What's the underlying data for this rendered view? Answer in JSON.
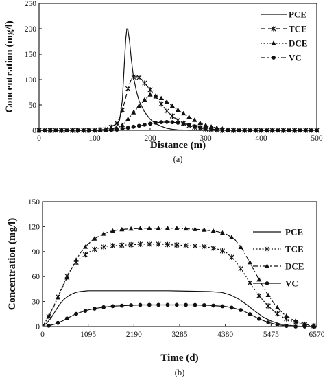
{
  "chart_data": [
    {
      "type": "line",
      "panel": "(a)",
      "xlabel": "Distance (m)",
      "ylabel": "Concentration (mg/l)",
      "xlim": [
        0,
        500
      ],
      "ylim": [
        0,
        250
      ],
      "xticks": [
        0,
        100,
        200,
        300,
        400,
        500
      ],
      "yticks": [
        0,
        50,
        100,
        150,
        200,
        250
      ],
      "grid": false,
      "legend_position": "top-right",
      "series": [
        {
          "name": "PCE",
          "style": "solid",
          "marker": "none",
          "x": [
            0,
            110,
            130,
            140,
            145,
            150,
            153,
            156,
            158,
            160,
            163,
            166,
            170,
            175,
            180,
            190,
            200,
            210,
            220,
            230,
            240,
            250,
            260,
            270,
            500
          ],
          "y": [
            0,
            0,
            1,
            8,
            20,
            60,
            120,
            180,
            200,
            198,
            175,
            140,
            105,
            78,
            58,
            36,
            22,
            13,
            8,
            4,
            2,
            1,
            0.5,
            0,
            0
          ]
        },
        {
          "name": "TCE",
          "style": "dashed",
          "marker": "x",
          "x": [
            0,
            100,
            120,
            130,
            140,
            145,
            150,
            155,
            160,
            165,
            170,
            175,
            180,
            185,
            190,
            200,
            210,
            220,
            230,
            240,
            250,
            260,
            270,
            280,
            290,
            300,
            310,
            320,
            330,
            340,
            350,
            500
          ],
          "y": [
            0,
            0,
            2,
            6,
            14,
            24,
            40,
            60,
            82,
            98,
            105,
            106,
            104,
            100,
            93,
            80,
            66,
            52,
            38,
            28,
            20,
            14,
            9,
            6,
            4,
            2,
            1,
            0.5,
            0,
            0,
            0,
            0
          ]
        },
        {
          "name": "DCE",
          "style": "dotted",
          "marker": "triangle",
          "x": [
            0,
            120,
            140,
            150,
            160,
            170,
            180,
            190,
            200,
            210,
            220,
            230,
            240,
            250,
            260,
            270,
            280,
            290,
            300,
            310,
            320,
            330,
            340,
            350,
            360,
            370,
            380,
            400,
            500
          ],
          "y": [
            0,
            0,
            4,
            10,
            22,
            35,
            48,
            60,
            70,
            68,
            63,
            56,
            48,
            40,
            33,
            26,
            20,
            14,
            10,
            7,
            5,
            3,
            2,
            1,
            0.5,
            0,
            0,
            0,
            0
          ]
        },
        {
          "name": "VC",
          "style": "dashdot",
          "marker": "circle",
          "x": [
            0,
            120,
            140,
            150,
            160,
            170,
            180,
            190,
            200,
            210,
            220,
            230,
            240,
            250,
            260,
            270,
            280,
            290,
            300,
            310,
            320,
            330,
            340,
            500
          ],
          "y": [
            0,
            0,
            1,
            3,
            5,
            7,
            9,
            11,
            13,
            15,
            16,
            16.5,
            16,
            15,
            13,
            11,
            8,
            6,
            4,
            2.5,
            1.5,
            0.5,
            0,
            0
          ]
        }
      ]
    },
    {
      "type": "line",
      "panel": "(b)",
      "xlabel": "Time (d)",
      "ylabel": "Concentration (mg/l)",
      "xlim": [
        0,
        6570
      ],
      "ylim": [
        0,
        150
      ],
      "xticks": [
        0,
        1095,
        2190,
        3285,
        4380,
        5475,
        6570
      ],
      "yticks": [
        0,
        30,
        60,
        90,
        120,
        150
      ],
      "grid": false,
      "legend_position": "top-right",
      "series": [
        {
          "name": "PCE",
          "style": "solid",
          "marker": "none",
          "x": [
            0,
            100,
            200,
            300,
            400,
            500,
            600,
            700,
            800,
            900,
            1000,
            1100,
            1300,
            2000,
            3000,
            4000,
            4300,
            4500,
            4700,
            4900,
            5100,
            5300,
            5500,
            5700,
            5900,
            6100,
            6300,
            6570
          ],
          "y": [
            0,
            4,
            10,
            18,
            26,
            32,
            36,
            39,
            41,
            42,
            42.5,
            43,
            43,
            43,
            43,
            42,
            41,
            38,
            33,
            26,
            18,
            11,
            6,
            3,
            1.5,
            0.5,
            0,
            0
          ]
        },
        {
          "name": "TCE",
          "style": "dotted",
          "marker": "x",
          "x": [
            0,
            150,
            300,
            450,
            600,
            750,
            900,
            1050,
            1200,
            1400,
            1600,
            2000,
            2400,
            2800,
            3200,
            3600,
            3900,
            4200,
            4400,
            4600,
            4800,
            5000,
            5200,
            5400,
            5600,
            5800,
            6000,
            6200,
            6400,
            6570
          ],
          "y": [
            0,
            12,
            28,
            45,
            62,
            74,
            82,
            87,
            92,
            95,
            97,
            98,
            99,
            99,
            98,
            97,
            96,
            93,
            89,
            80,
            66,
            50,
            36,
            25,
            16,
            10,
            6,
            3,
            1,
            0.5
          ]
        },
        {
          "name": "DCE",
          "style": "dashdot",
          "marker": "triangle",
          "x": [
            0,
            150,
            300,
            450,
            600,
            750,
            900,
            1050,
            1200,
            1400,
            1600,
            1800,
            2000,
            2400,
            2800,
            3200,
            3600,
            3900,
            4200,
            4400,
            4600,
            4800,
            5000,
            5200,
            5400,
            5600,
            5800,
            6000,
            6200,
            6400,
            6570
          ],
          "y": [
            0,
            12,
            27,
            44,
            60,
            75,
            88,
            97,
            104,
            110,
            114,
            116,
            117,
            118,
            118,
            118,
            117,
            116,
            114,
            111,
            105,
            92,
            74,
            55,
            38,
            24,
            14,
            8,
            4,
            1.5,
            0.5
          ]
        },
        {
          "name": "VC",
          "style": "solid",
          "marker": "circle",
          "x": [
            0,
            150,
            300,
            450,
            600,
            750,
            900,
            1100,
            1300,
            1500,
            1700,
            1900,
            2100,
            2400,
            2800,
            3200,
            3600,
            4000,
            4400,
            4600,
            4800,
            5000,
            5200,
            5400,
            5600,
            5800,
            6000,
            6570
          ],
          "y": [
            0,
            1,
            3,
            6,
            10,
            14,
            17,
            20,
            22,
            23.5,
            24.5,
            25,
            25.5,
            26,
            26,
            26,
            26,
            25.5,
            24,
            22,
            19,
            14,
            9,
            5,
            2.5,
            1,
            0,
            0
          ]
        }
      ]
    }
  ]
}
